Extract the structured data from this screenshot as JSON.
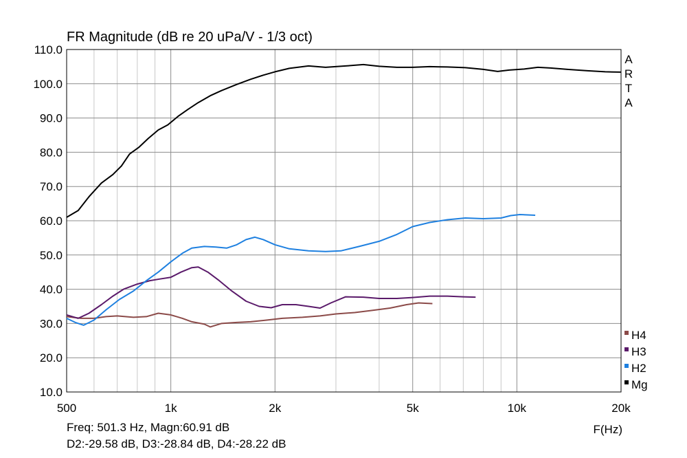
{
  "chart_data": {
    "type": "line",
    "title": "FR Magnitude (dB re 20 uPa/V - 1/3 oct)",
    "xlabel": "F(Hz)",
    "x_scale": "log",
    "xlim": [
      500,
      20000
    ],
    "ylim": [
      10,
      110
    ],
    "grid": true,
    "legend_position": "right",
    "x_ticks": [
      {
        "value": 500,
        "label": "500"
      },
      {
        "value": 1000,
        "label": "1k"
      },
      {
        "value": 2000,
        "label": "2k"
      },
      {
        "value": 5000,
        "label": "5k"
      },
      {
        "value": 10000,
        "label": "10k"
      },
      {
        "value": 20000,
        "label": "20k"
      }
    ],
    "y_ticks": [
      {
        "value": 110,
        "label": "110.0"
      },
      {
        "value": 100,
        "label": "100.0"
      },
      {
        "value": 90,
        "label": "90.0"
      },
      {
        "value": 80,
        "label": "80.0"
      },
      {
        "value": 70,
        "label": "70.0"
      },
      {
        "value": 60,
        "label": "60.0"
      },
      {
        "value": 50,
        "label": "50.0"
      },
      {
        "value": 40,
        "label": "40.0"
      },
      {
        "value": 30,
        "label": "30.0"
      },
      {
        "value": 20,
        "label": "20.0"
      },
      {
        "value": 10,
        "label": "10.0"
      }
    ],
    "watermark": [
      "A",
      "R",
      "T",
      "A"
    ],
    "series": [
      {
        "name": "Mg",
        "color": "#000000",
        "points": [
          [
            500,
            61
          ],
          [
            540,
            63
          ],
          [
            580,
            67
          ],
          [
            630,
            71
          ],
          [
            680,
            73.5
          ],
          [
            720,
            76
          ],
          [
            760,
            79.5
          ],
          [
            810,
            81.5
          ],
          [
            860,
            84
          ],
          [
            920,
            86.5
          ],
          [
            980,
            88
          ],
          [
            1050,
            90.5
          ],
          [
            1120,
            92.5
          ],
          [
            1200,
            94.5
          ],
          [
            1300,
            96.5
          ],
          [
            1400,
            98
          ],
          [
            1550,
            99.8
          ],
          [
            1700,
            101.3
          ],
          [
            1850,
            102.5
          ],
          [
            2000,
            103.5
          ],
          [
            2200,
            104.5
          ],
          [
            2500,
            105.2
          ],
          [
            2800,
            104.8
          ],
          [
            3200,
            105.2
          ],
          [
            3600,
            105.6
          ],
          [
            4000,
            105.1
          ],
          [
            4500,
            104.8
          ],
          [
            5000,
            104.8
          ],
          [
            5600,
            105
          ],
          [
            6300,
            104.9
          ],
          [
            7100,
            104.7
          ],
          [
            8000,
            104.2
          ],
          [
            8800,
            103.6
          ],
          [
            9500,
            104
          ],
          [
            10500,
            104.3
          ],
          [
            11500,
            104.8
          ],
          [
            12500,
            104.6
          ],
          [
            14000,
            104.2
          ],
          [
            16000,
            103.8
          ],
          [
            18000,
            103.5
          ],
          [
            20000,
            103.4
          ]
        ]
      },
      {
        "name": "H2",
        "color": "#1e80e0",
        "points": [
          [
            500,
            31.5
          ],
          [
            530,
            30.3
          ],
          [
            560,
            29.5
          ],
          [
            600,
            31
          ],
          [
            650,
            34
          ],
          [
            710,
            37
          ],
          [
            780,
            39.5
          ],
          [
            850,
            42.5
          ],
          [
            920,
            45
          ],
          [
            1000,
            48
          ],
          [
            1080,
            50.5
          ],
          [
            1150,
            52
          ],
          [
            1250,
            52.5
          ],
          [
            1350,
            52.3
          ],
          [
            1450,
            52
          ],
          [
            1550,
            53
          ],
          [
            1650,
            54.5
          ],
          [
            1750,
            55.2
          ],
          [
            1850,
            54.5
          ],
          [
            2000,
            53
          ],
          [
            2200,
            51.8
          ],
          [
            2500,
            51.2
          ],
          [
            2800,
            51
          ],
          [
            3100,
            51.2
          ],
          [
            3500,
            52.5
          ],
          [
            4000,
            54
          ],
          [
            4500,
            56
          ],
          [
            5000,
            58.3
          ],
          [
            5600,
            59.5
          ],
          [
            6300,
            60.3
          ],
          [
            7100,
            60.8
          ],
          [
            8000,
            60.6
          ],
          [
            9000,
            60.8
          ],
          [
            9600,
            61.5
          ],
          [
            10200,
            61.8
          ],
          [
            11300,
            61.6
          ]
        ]
      },
      {
        "name": "H3",
        "color": "#5a1a6a",
        "points": [
          [
            500,
            32.5
          ],
          [
            540,
            31.5
          ],
          [
            580,
            33
          ],
          [
            630,
            35.5
          ],
          [
            680,
            38
          ],
          [
            730,
            40
          ],
          [
            800,
            41.5
          ],
          [
            870,
            42.5
          ],
          [
            930,
            43
          ],
          [
            1000,
            43.5
          ],
          [
            1070,
            45
          ],
          [
            1150,
            46.3
          ],
          [
            1200,
            46.5
          ],
          [
            1280,
            45
          ],
          [
            1380,
            42.5
          ],
          [
            1500,
            39.5
          ],
          [
            1650,
            36.5
          ],
          [
            1800,
            35
          ],
          [
            1950,
            34.6
          ],
          [
            2100,
            35.5
          ],
          [
            2300,
            35.5
          ],
          [
            2500,
            35
          ],
          [
            2700,
            34.5
          ],
          [
            2900,
            36
          ],
          [
            3200,
            37.8
          ],
          [
            3600,
            37.7
          ],
          [
            4000,
            37.3
          ],
          [
            4500,
            37.3
          ],
          [
            5000,
            37.6
          ],
          [
            5600,
            38
          ],
          [
            6300,
            38
          ],
          [
            7000,
            37.8
          ],
          [
            7600,
            37.7
          ]
        ]
      },
      {
        "name": "H4",
        "color": "#8b4a48",
        "points": [
          [
            500,
            32
          ],
          [
            550,
            31.5
          ],
          [
            600,
            31.5
          ],
          [
            650,
            32
          ],
          [
            700,
            32.2
          ],
          [
            780,
            31.8
          ],
          [
            850,
            32
          ],
          [
            920,
            33
          ],
          [
            1000,
            32.5
          ],
          [
            1080,
            31.5
          ],
          [
            1150,
            30.5
          ],
          [
            1250,
            29.8
          ],
          [
            1300,
            29
          ],
          [
            1400,
            30
          ],
          [
            1550,
            30.3
          ],
          [
            1700,
            30.5
          ],
          [
            1900,
            31
          ],
          [
            2100,
            31.5
          ],
          [
            2400,
            31.8
          ],
          [
            2700,
            32.2
          ],
          [
            3000,
            32.8
          ],
          [
            3400,
            33.2
          ],
          [
            3800,
            33.8
          ],
          [
            4300,
            34.5
          ],
          [
            4800,
            35.5
          ],
          [
            5200,
            36
          ],
          [
            5700,
            35.8
          ]
        ]
      }
    ]
  },
  "readout": {
    "line1": "Freq: 501.3 Hz, Magn:60.91 dB",
    "line2": "D2:-29.58 dB, D3:-28.84 dB, D4:-28.22 dB"
  }
}
